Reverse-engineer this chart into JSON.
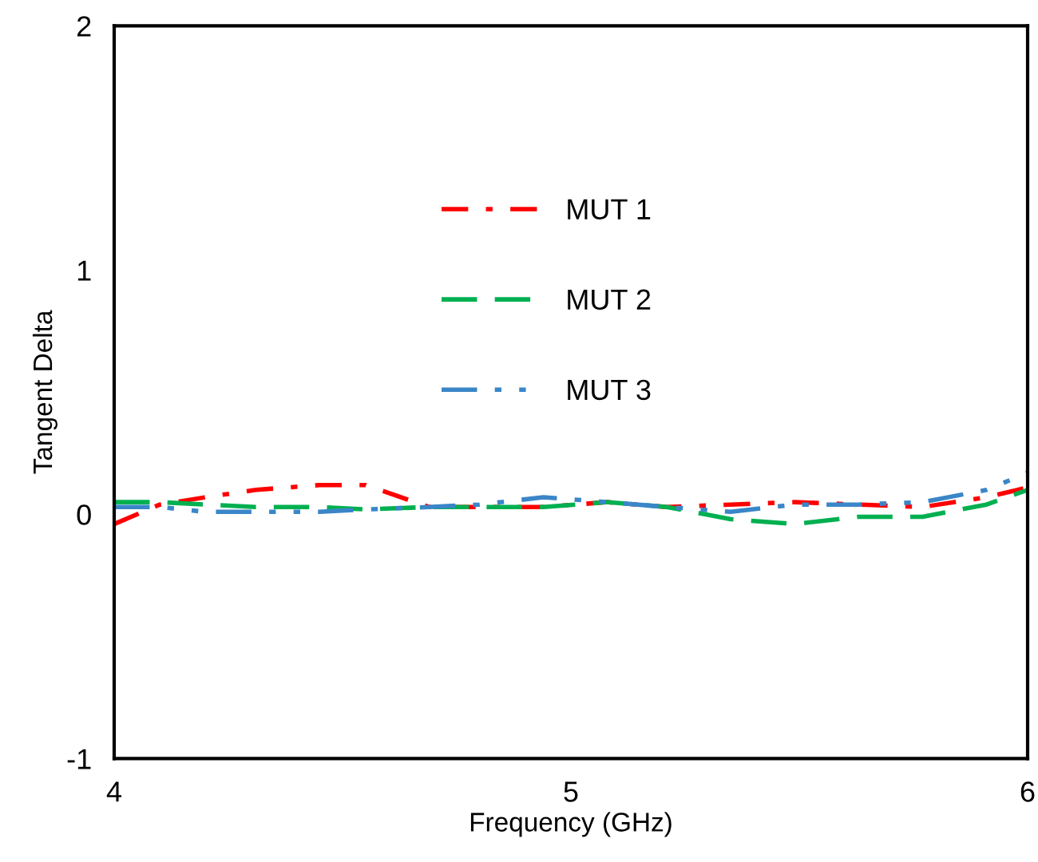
{
  "chart_data": {
    "type": "line",
    "xlabel": "Frequency (GHz)",
    "ylabel": "Tangent Delta",
    "x": [
      4.0,
      4.1,
      4.2,
      4.31,
      4.45,
      4.55,
      4.69,
      4.8,
      4.94,
      5.08,
      5.21,
      5.35,
      5.49,
      5.63,
      5.77,
      5.91,
      6.0
    ],
    "series": [
      {
        "name": "MUT 1",
        "color": "#ff0000",
        "line_style": "dashdot",
        "values": [
          -0.04,
          0.04,
          0.07,
          0.1,
          0.12,
          0.12,
          0.03,
          0.03,
          0.03,
          0.05,
          0.03,
          0.04,
          0.05,
          0.04,
          0.03,
          0.07,
          0.11
        ]
      },
      {
        "name": "MUT 2",
        "color": "#00b050",
        "line_style": "dashed",
        "values": [
          0.05,
          0.05,
          0.04,
          0.03,
          0.03,
          0.02,
          0.03,
          0.03,
          0.03,
          0.05,
          0.03,
          -0.02,
          -0.04,
          -0.01,
          -0.01,
          0.04,
          0.1
        ]
      },
      {
        "name": "MUT 3",
        "color": "#3a86c8",
        "line_style": "dashdotdot",
        "values": [
          0.03,
          0.03,
          0.01,
          0.01,
          0.01,
          0.02,
          0.03,
          0.04,
          0.07,
          0.05,
          0.03,
          0.01,
          0.04,
          0.04,
          0.05,
          0.1,
          0.17
        ]
      }
    ],
    "xlim": [
      4,
      6
    ],
    "xticks": [
      4,
      5,
      6
    ],
    "ylim": [
      -1,
      2
    ],
    "yticks": [
      -1,
      0,
      1,
      2
    ],
    "grid": false,
    "legend": "top left",
    "marker": "none"
  }
}
